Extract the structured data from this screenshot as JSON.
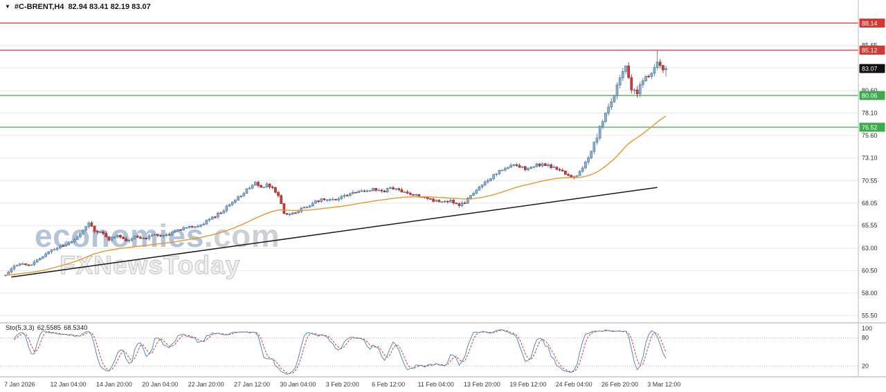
{
  "symbol_bar": {
    "dropdown_icon": "▼",
    "symbol": "#C-BRENT,H4",
    "ohlc_text": "82.94 83.41 82.19 83.07"
  },
  "watermark": {
    "line1_main": "economies",
    "line1_suffix": ".com",
    "line2": "FXNewsToday"
  },
  "chart_data": {
    "type": "candlestick",
    "title": "#C-BRENT H4",
    "timeframe": "H4",
    "current_ohlc": {
      "open": 82.94,
      "high": 83.41,
      "low": 82.19,
      "close": 83.07
    },
    "bars_total": 231,
    "y_axis": {
      "ticks": [
        {
          "label": "85.65",
          "price": 85.65
        },
        {
          "label": "80.60",
          "price": 80.6
        },
        {
          "label": "78.10",
          "price": 78.1
        },
        {
          "label": "75.60",
          "price": 75.6
        },
        {
          "label": "73.10",
          "price": 73.1
        },
        {
          "label": "70.55",
          "price": 70.55
        },
        {
          "label": "68.05",
          "price": 68.05
        },
        {
          "label": "65.55",
          "price": 65.55
        },
        {
          "label": "63.00",
          "price": 63.0
        },
        {
          "label": "60.50",
          "price": 60.5
        },
        {
          "label": "58.00",
          "price": 58.0
        },
        {
          "label": "55.50",
          "price": 55.5
        }
      ],
      "hidden_grid_prices": [
        88.15,
        83.15
      ]
    },
    "horizontal_lines": [
      {
        "label": "88.14",
        "price": 88.14,
        "color": "#d23a34",
        "role": "resistance"
      },
      {
        "label": "85.12",
        "price": 85.12,
        "color": "#d23a34",
        "role": "resistance"
      },
      {
        "label": "80.06",
        "price": 80.06,
        "color": "#3cab4d",
        "role": "support"
      },
      {
        "label": "76.52",
        "price": 76.52,
        "color": "#3cab4d",
        "role": "support"
      }
    ],
    "current_price_marker": {
      "label": "83.07",
      "price": 83.07,
      "color": "#111111"
    },
    "moving_average": {
      "period": 50,
      "color": "#e8962e"
    },
    "trendline": {
      "from": {
        "bar": 2,
        "price": 59.8
      },
      "to": {
        "bar": 227,
        "price": 69.8
      },
      "color": "#1a1a1a"
    },
    "price_path": [
      [
        0,
        60.0
      ],
      [
        3,
        60.9
      ],
      [
        6,
        61.4
      ],
      [
        9,
        61.1
      ],
      [
        12,
        61.9
      ],
      [
        16,
        62.8
      ],
      [
        20,
        63.4
      ],
      [
        24,
        63.9
      ],
      [
        27,
        64.9
      ],
      [
        29,
        65.8
      ],
      [
        31,
        64.9
      ],
      [
        33,
        64.9
      ],
      [
        36,
        64.0
      ],
      [
        39,
        64.5
      ],
      [
        42,
        63.8
      ],
      [
        45,
        64.3
      ],
      [
        49,
        64.2
      ],
      [
        52,
        64.6
      ],
      [
        55,
        64.3
      ],
      [
        58,
        64.8
      ],
      [
        61,
        65.2
      ],
      [
        64,
        65.6
      ],
      [
        67,
        65.4
      ],
      [
        70,
        66.0
      ],
      [
        73,
        66.6
      ],
      [
        76,
        67.3
      ],
      [
        79,
        68.1
      ],
      [
        82,
        68.9
      ],
      [
        85,
        69.8
      ],
      [
        87,
        70.4
      ],
      [
        89,
        69.7
      ],
      [
        91,
        70.1
      ],
      [
        93,
        69.9
      ],
      [
        95,
        68.8
      ],
      [
        97,
        66.9
      ],
      [
        99,
        66.7
      ],
      [
        101,
        67.1
      ],
      [
        104,
        67.5
      ],
      [
        107,
        68.0
      ],
      [
        110,
        68.5
      ],
      [
        113,
        68.3
      ],
      [
        116,
        68.6
      ],
      [
        119,
        69.0
      ],
      [
        122,
        69.3
      ],
      [
        125,
        69.5
      ],
      [
        128,
        69.6
      ],
      [
        131,
        69.3
      ],
      [
        134,
        69.7
      ],
      [
        137,
        69.5
      ],
      [
        140,
        69.2
      ],
      [
        143,
        68.9
      ],
      [
        146,
        68.6
      ],
      [
        149,
        68.3
      ],
      [
        152,
        68.2
      ],
      [
        155,
        68.3
      ],
      [
        158,
        67.8
      ],
      [
        160,
        68.1
      ],
      [
        163,
        69.2
      ],
      [
        166,
        70.1
      ],
      [
        169,
        70.9
      ],
      [
        172,
        71.6
      ],
      [
        175,
        72.1
      ],
      [
        178,
        72.3
      ],
      [
        181,
        71.9
      ],
      [
        184,
        72.2
      ],
      [
        187,
        72.4
      ],
      [
        190,
        72.1
      ],
      [
        193,
        71.7
      ],
      [
        196,
        71.2
      ],
      [
        198,
        70.8
      ],
      [
        200,
        71.5
      ],
      [
        202,
        72.6
      ],
      [
        204,
        74.0
      ],
      [
        206,
        75.5
      ],
      [
        208,
        77.2
      ],
      [
        210,
        78.6
      ],
      [
        212,
        80.2
      ],
      [
        214,
        81.8
      ],
      [
        216,
        83.2
      ],
      [
        218,
        80.9
      ],
      [
        220,
        80.4
      ],
      [
        222,
        81.6
      ],
      [
        224,
        82.4
      ],
      [
        226,
        83.0
      ],
      [
        227,
        84.0
      ],
      [
        228,
        83.4
      ],
      [
        229,
        82.7
      ],
      [
        230,
        83.07
      ]
    ],
    "spike": {
      "bar": 227,
      "high": 85.1
    },
    "time_axis": [
      {
        "label": "7 Jan 2026",
        "bar": 1
      },
      {
        "label": "12 Jan 04:00",
        "bar": 17
      },
      {
        "label": "14 Jan 20:00",
        "bar": 33
      },
      {
        "label": "20 Jan 04:00",
        "bar": 49
      },
      {
        "label": "22 Jan 20:00",
        "bar": 65
      },
      {
        "label": "27 Jan 12:00",
        "bar": 81
      },
      {
        "label": "30 Jan 04:00",
        "bar": 97
      },
      {
        "label": "3 Feb 20:00",
        "bar": 113
      },
      {
        "label": "6 Feb 12:00",
        "bar": 129
      },
      {
        "label": "11 Feb 04:00",
        "bar": 145
      },
      {
        "label": "13 Feb 20:00",
        "bar": 161
      },
      {
        "label": "19 Feb 12:00",
        "bar": 177
      },
      {
        "label": "24 Feb 04:00",
        "bar": 193
      },
      {
        "label": "26 Feb 20:00",
        "bar": 209
      },
      {
        "label": "3 Mar 12:00",
        "bar": 225
      }
    ],
    "stochastic": {
      "name": "Sto(5,3,3)",
      "k_value": "62.5585",
      "d_value": "68.5340",
      "levels": [
        {
          "label": "100",
          "value": 100
        },
        {
          "label": "80",
          "value": 80
        },
        {
          "label": "20",
          "value": 20
        }
      ],
      "main_color": "#5b87b5",
      "signal_color": "#c23b3b"
    },
    "candle_colors": {
      "up_fill": "#8fb0cf",
      "up_stroke": "#4f7ba3",
      "down_fill": "#cf3d3d",
      "down_stroke": "#9e2b2b"
    }
  }
}
